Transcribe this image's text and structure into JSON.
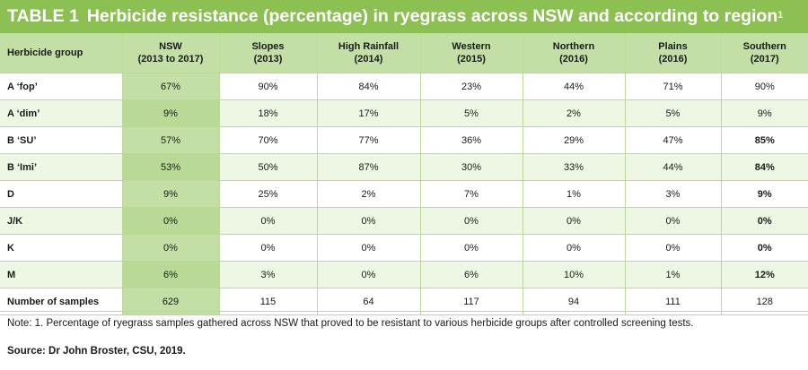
{
  "title": {
    "number": "TABLE 1",
    "text": "Herbicide resistance (percentage) in ryegrass across NSW and according to region",
    "superscript": "1"
  },
  "table": {
    "headers": [
      {
        "line1": "Herbicide group",
        "line2": ""
      },
      {
        "line1": "NSW",
        "line2": "(2013 to 2017)"
      },
      {
        "line1": "Slopes",
        "line2": "(2013)"
      },
      {
        "line1": "High Rainfall",
        "line2": "(2014)"
      },
      {
        "line1": "Western",
        "line2": "(2015)"
      },
      {
        "line1": "Northern",
        "line2": "(2016)"
      },
      {
        "line1": "Plains",
        "line2": "(2016)"
      },
      {
        "line1": "Southern",
        "line2": "(2017)"
      }
    ],
    "rows": [
      [
        "A ‘fop’",
        "67%",
        "90%",
        "84%",
        "23%",
        "44%",
        "71%",
        "90%"
      ],
      [
        "A ‘dim’",
        "9%",
        "18%",
        "17%",
        "5%",
        "2%",
        "5%",
        "9%"
      ],
      [
        "B ‘SU’",
        "57%",
        "70%",
        "77%",
        "36%",
        "29%",
        "47%",
        "85%"
      ],
      [
        "B ‘Imi’",
        "53%",
        "50%",
        "87%",
        "30%",
        "33%",
        "44%",
        "84%"
      ],
      [
        "D",
        "9%",
        "25%",
        "2%",
        "7%",
        "1%",
        "3%",
        "9%"
      ],
      [
        "J/K",
        "0%",
        "0%",
        "0%",
        "0%",
        "0%",
        "0%",
        "0%"
      ],
      [
        "K",
        "0%",
        "0%",
        "0%",
        "0%",
        "0%",
        "0%",
        "0%"
      ],
      [
        "M",
        "6%",
        "3%",
        "0%",
        "6%",
        "10%",
        "1%",
        "12%"
      ],
      [
        "Number of samples",
        "629",
        "115",
        "64",
        "117",
        "94",
        "111",
        "128"
      ]
    ]
  },
  "note": "Note: 1. Percentage of ryegrass samples gathered across NSW that proved to be resistant to various herbicide groups after controlled screening tests.",
  "source": "Source: Dr John Broster, CSU, 2019.",
  "colors": {
    "title_bg": "#8dc052",
    "header_bg": "#c3dfa5",
    "alt_row_bg": "#eef6e4",
    "nsw_col_bg": "#c3dfa5"
  }
}
